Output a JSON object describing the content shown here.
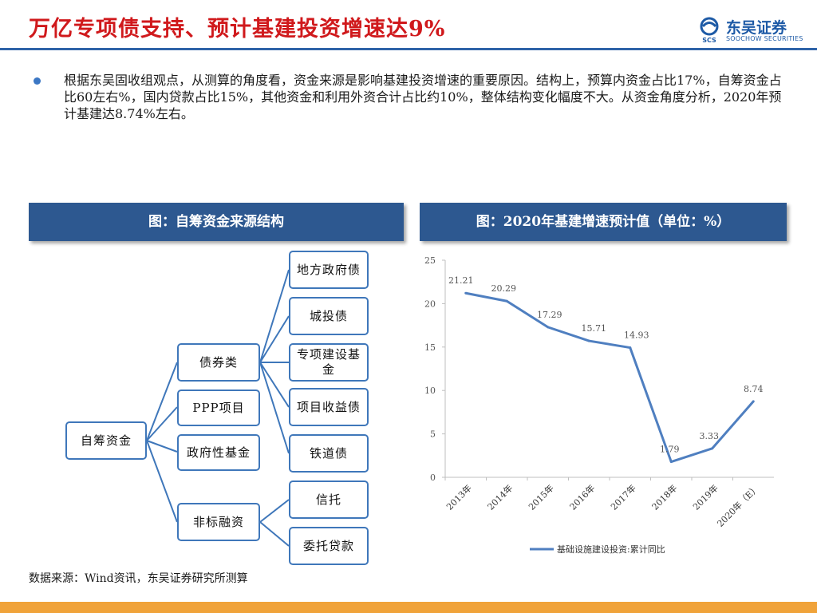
{
  "header": {
    "title": "万亿专项债支持、预计基建投资增速达9%",
    "logo_cn": "东吴证券",
    "logo_en": "SOOCHOW SECURITIES",
    "logo_mark": "SCS"
  },
  "bullet": {
    "text": "根据东吴固收组观点，从测算的角度看，资金来源是影响基建投资增速的重要原因。结构上，预算内资金占比17%，自筹资金占比60左右%，国内贷款占比15%，其他资金和利用外资合计占比约10%，整体结构变化幅度不大。从资金角度分析，2020年预计基建达8.74%左右。"
  },
  "left_panel": {
    "title": "图：自筹资金来源结构",
    "root": "自筹资金",
    "level1": [
      "债券类",
      "PPP项目",
      "政府性基金",
      "非标融资"
    ],
    "bond_children": [
      "地方政府债",
      "城投债",
      "专项建设基金",
      "项目收益债",
      "铁道债"
    ],
    "nonstd_children": [
      "信托",
      "委托贷款"
    ]
  },
  "right_panel": {
    "title": "图：2020年基建增速预计值（单位：%）"
  },
  "chart_data": {
    "type": "line",
    "categories": [
      "2013年",
      "2014年",
      "2015年",
      "2016年",
      "2017年",
      "2018年",
      "2019年",
      "2020年（E）"
    ],
    "series": [
      {
        "name": "基础设施建设投资:累计同比",
        "values": [
          21.21,
          20.29,
          17.29,
          15.71,
          14.93,
          1.79,
          3.33,
          8.74
        ]
      }
    ],
    "ylim": [
      0,
      25
    ],
    "yticks": [
      0,
      5,
      10,
      15,
      20,
      25
    ],
    "grid": false,
    "legend": "bottom",
    "line_color": "#4f7fc0"
  },
  "footer": {
    "source": "数据来源：Wind资讯，东吴证券研究所测算"
  }
}
